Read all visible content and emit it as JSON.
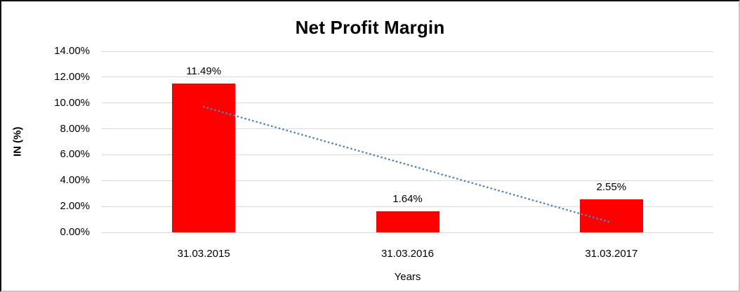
{
  "chart_data": {
    "type": "bar",
    "title": "Net Profit Margin",
    "xlabel": "Years",
    "ylabel": "IN (%)",
    "categories": [
      "31.03.2015",
      "31.03.2016",
      "31.03.2017"
    ],
    "values": [
      11.49,
      1.64,
      2.55
    ],
    "data_labels": [
      "11.49%",
      "1.64%",
      "2.55%"
    ],
    "y_ticks": [
      "0.00%",
      "2.00%",
      "4.00%",
      "6.00%",
      "8.00%",
      "10.00%",
      "12.00%",
      "14.00%"
    ],
    "ylim": [
      0,
      14
    ],
    "grid": true,
    "legend": "none",
    "bar_color": "#ff0000",
    "gridline_color": "#d9d9d9",
    "text_color": "#000000",
    "trendline": {
      "type": "linear",
      "style": "dotted",
      "color": "#4a86c8",
      "start_value": 9.7,
      "end_value": 0.76
    }
  }
}
